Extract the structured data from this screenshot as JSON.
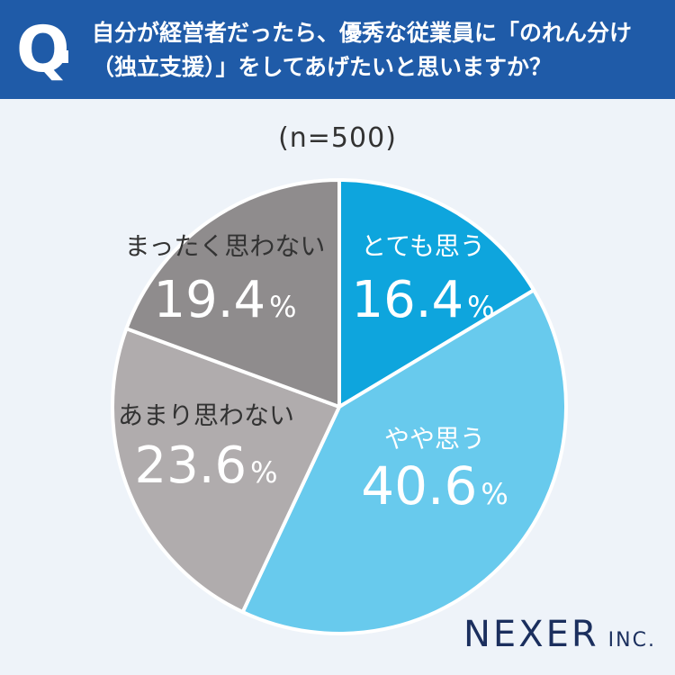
{
  "header": {
    "q_label": "Q",
    "question_line1": "自分が経営者だったら、優秀な従業員に「のれん分け",
    "question_line2": "（独立支援）」をしてあげたいと思いますか？"
  },
  "sample_size": "(n=500)",
  "logo": {
    "main": "NEXER",
    "suffix": "INC."
  },
  "colors": {
    "header_bg": "#1f5ba8",
    "background": "#eef3f9",
    "text_dark": "#333333",
    "logo": "#1b2f5e"
  },
  "chart_data": {
    "type": "pie",
    "slices": [
      {
        "label": "とても思う",
        "value": 16.4,
        "value_text": "16.4",
        "unit": "%",
        "color": "#0ea5dd"
      },
      {
        "label": "やや思う",
        "value": 40.6,
        "value_text": "40.6",
        "unit": "%",
        "color": "#68caed"
      },
      {
        "label": "あまり思わない",
        "value": 23.6,
        "value_text": "23.6",
        "unit": "%",
        "color": "#b0acad"
      },
      {
        "label": "まったく思わない",
        "value": 19.4,
        "value_text": "19.4",
        "unit": "%",
        "color": "#8f8c8d"
      }
    ],
    "start": "top",
    "direction": "clockwise"
  }
}
